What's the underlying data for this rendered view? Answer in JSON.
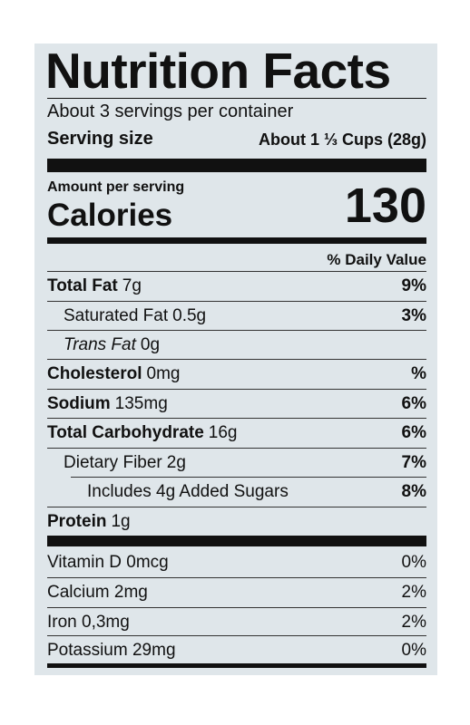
{
  "title": "Nutrition Facts",
  "servings": "About 3 servings per container",
  "serving_size_label": "Serving size",
  "serving_size": "About 1 ⅓ Cups (28g)",
  "amount_per_serving": "Amount per serving",
  "calories_label": "Calories",
  "calories": "130",
  "daily_value_header": "% Daily Value",
  "nutrients": [
    {
      "name": "Total Fat",
      "amount": "7g",
      "dv": "9%"
    },
    {
      "name": "Saturated Fat",
      "amount": "0.5g",
      "dv": "3%"
    },
    {
      "name": "Trans Fat",
      "amount": "0g"
    },
    {
      "name": "Cholesterol",
      "amount": "0mg",
      "dv": "%"
    },
    {
      "name": "Sodium",
      "amount": "135mg",
      "dv": "6%"
    },
    {
      "name": "Total Carbohydrate",
      "amount": "16g",
      "dv": "6%"
    },
    {
      "name": "Dietary Fiber",
      "amount": "2g",
      "dv": "7%"
    },
    {
      "name": "Includes 4g Added Sugars",
      "dv": "8%"
    },
    {
      "name": "Protein",
      "amount": "1g"
    }
  ],
  "vitamins": [
    {
      "name": "Vitamin D 0mcg",
      "dv": "0%"
    },
    {
      "name": "Calcium 2mg",
      "dv": "2%"
    },
    {
      "name": "Iron 0,3mg",
      "dv": "2%"
    },
    {
      "name": "Potassium 29mg",
      "dv": "0%"
    }
  ]
}
